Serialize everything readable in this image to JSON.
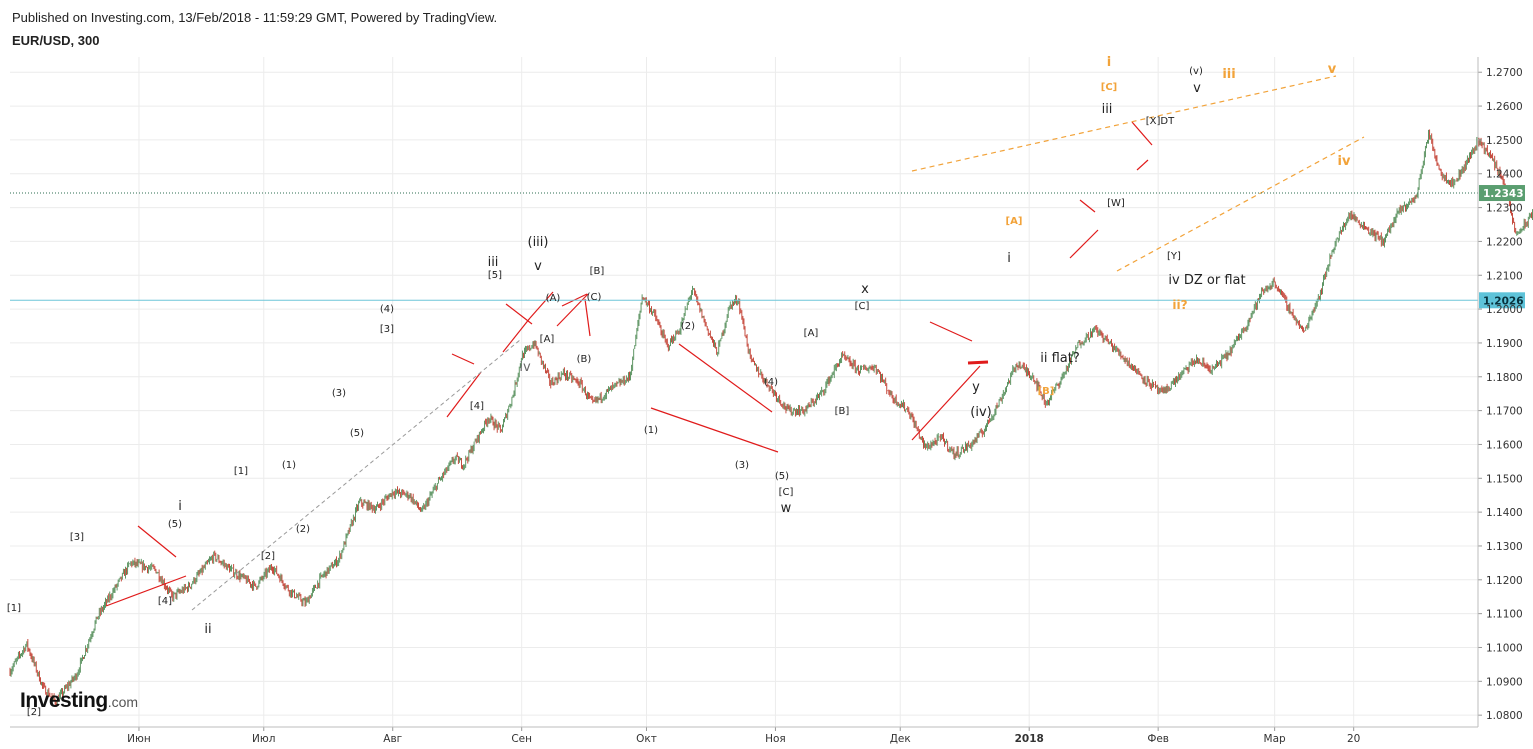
{
  "header": {
    "published": "Published on Investing.com, 13/Feb/2018 - 11:59:29 GMT, Powered by TradingView.",
    "symbol": "EUR/USD, 300"
  },
  "logo": {
    "brand": "Investing",
    "suffix": ".com"
  },
  "colors": {
    "up": "#4f8b55",
    "down": "#c0392b",
    "grid": "#ececec",
    "axis": "#bdbdbd",
    "trend_red": "#e01b1b",
    "orange": "#f2a33a",
    "dashed_grey": "#9a9a9a",
    "last_price_bg": "#5a9e70",
    "level_bg": "#5ec3d9",
    "level_line": "#6fc6d8",
    "price_dotted": "#2e6e51"
  },
  "chart_data": {
    "type": "candlestick",
    "x_ticks": [
      "Июн",
      "Июл",
      "Авг",
      "Сен",
      "Окт",
      "Ноя",
      "Дек",
      "2018",
      "Фев",
      "Мар",
      "20"
    ],
    "y_ticks": [
      "1.2700",
      "1.2600",
      "1.2500",
      "1.2400",
      "1.2300",
      "1.2200",
      "1.2100",
      "1.2000",
      "1.1900",
      "1.1800",
      "1.1700",
      "1.1600",
      "1.1500",
      "1.1400",
      "1.1300",
      "1.1200",
      "1.1100",
      "1.1000",
      "1.0900",
      "1.0800"
    ],
    "ylim": [
      1.0765,
      1.2745
    ],
    "last_price": {
      "value": 1.2343,
      "label": "1.2343"
    },
    "level": {
      "value": 1.2026,
      "label": "1.2026"
    },
    "path": [
      [
        "2017-05-01",
        1.093
      ],
      [
        "2017-05-05",
        1.101
      ],
      [
        "2017-05-09",
        1.088
      ],
      [
        "2017-05-12",
        1.084
      ],
      [
        "2017-05-17",
        1.092
      ],
      [
        "2017-05-22",
        1.109
      ],
      [
        "2017-05-26",
        1.117
      ],
      [
        "2017-05-30",
        1.125
      ],
      [
        "2017-06-05",
        1.123
      ],
      [
        "2017-06-09",
        1.115
      ],
      [
        "2017-06-13",
        1.118
      ],
      [
        "2017-06-19",
        1.127
      ],
      [
        "2017-06-23",
        1.123
      ],
      [
        "2017-06-29",
        1.118
      ],
      [
        "2017-07-03",
        1.124
      ],
      [
        "2017-07-07",
        1.117
      ],
      [
        "2017-07-11",
        1.113
      ],
      [
        "2017-07-15",
        1.121
      ],
      [
        "2017-07-19",
        1.126
      ],
      [
        "2017-07-24",
        1.143
      ],
      [
        "2017-07-28",
        1.141
      ],
      [
        "2017-08-01",
        1.146
      ],
      [
        "2017-08-05",
        1.145
      ],
      [
        "2017-08-08",
        1.14
      ],
      [
        "2017-08-12",
        1.149
      ],
      [
        "2017-08-16",
        1.156
      ],
      [
        "2017-08-18",
        1.154
      ],
      [
        "2017-08-21",
        1.161
      ],
      [
        "2017-08-24",
        1.168
      ],
      [
        "2017-08-27",
        1.164
      ],
      [
        "2017-08-30",
        1.175
      ],
      [
        "2017-09-01",
        1.186
      ],
      [
        "2017-09-04",
        1.19
      ],
      [
        "2017-09-08",
        1.178
      ],
      [
        "2017-09-11",
        1.181
      ],
      [
        "2017-09-15",
        1.178
      ],
      [
        "2017-09-18",
        1.172
      ],
      [
        "2017-09-22",
        1.176
      ],
      [
        "2017-09-27",
        1.18
      ],
      [
        "2017-09-30",
        1.204
      ],
      [
        "2017-10-03",
        1.198
      ],
      [
        "2017-10-06",
        1.189
      ],
      [
        "2017-10-09",
        1.194
      ],
      [
        "2017-10-12",
        1.206
      ],
      [
        "2017-10-15",
        1.196
      ],
      [
        "2017-10-18",
        1.187
      ],
      [
        "2017-10-21",
        1.201
      ],
      [
        "2017-10-23",
        1.203
      ],
      [
        "2017-10-26",
        1.185
      ],
      [
        "2017-10-30",
        1.178
      ],
      [
        "2017-11-04",
        1.17
      ],
      [
        "2017-11-08",
        1.17
      ],
      [
        "2017-11-12",
        1.175
      ],
      [
        "2017-11-17",
        1.186
      ],
      [
        "2017-11-21",
        1.182
      ],
      [
        "2017-11-25",
        1.183
      ],
      [
        "2017-11-29",
        1.174
      ],
      [
        "2017-12-03",
        1.17
      ],
      [
        "2017-12-07",
        1.159
      ],
      [
        "2017-12-11",
        1.162
      ],
      [
        "2017-12-14",
        1.157
      ],
      [
        "2017-12-18",
        1.16
      ],
      [
        "2017-12-21",
        1.164
      ],
      [
        "2017-12-25",
        1.173
      ],
      [
        "2017-12-29",
        1.184
      ],
      [
        "2018-01-02",
        1.18
      ],
      [
        "2018-01-05",
        1.172
      ],
      [
        "2018-01-09",
        1.18
      ],
      [
        "2018-01-13",
        1.19
      ],
      [
        "2018-01-17",
        1.194
      ],
      [
        "2018-01-21",
        1.189
      ],
      [
        "2018-01-25",
        1.184
      ],
      [
        "2018-01-29",
        1.179
      ],
      [
        "2018-02-02",
        1.175
      ],
      [
        "2018-02-06",
        1.18
      ],
      [
        "2018-02-10",
        1.185
      ],
      [
        "2018-02-14",
        1.182
      ],
      [
        "2018-02-18",
        1.187
      ],
      [
        "2018-02-22",
        1.195
      ],
      [
        "2018-02-26",
        1.205
      ],
      [
        "2018-03-01",
        1.208
      ],
      [
        "2018-03-05",
        1.199
      ],
      [
        "2018-03-08",
        1.193
      ],
      [
        "2018-03-12",
        1.205
      ],
      [
        "2018-03-15",
        1.218
      ],
      [
        "2018-03-19",
        1.228
      ],
      [
        "2018-03-23",
        1.224
      ],
      [
        "2018-03-27",
        1.22
      ],
      [
        "2018-03-31",
        1.229
      ],
      [
        "2018-04-04",
        1.233
      ],
      [
        "2018-04-07",
        1.252
      ],
      [
        "2018-04-10",
        1.24
      ],
      [
        "2018-04-13",
        1.237
      ],
      [
        "2018-04-16",
        1.243
      ],
      [
        "2018-04-19",
        1.25
      ],
      [
        "2018-04-22",
        1.245
      ],
      [
        "2018-04-25",
        1.238
      ],
      [
        "2018-04-28",
        1.222
      ],
      [
        "2018-05-01",
        1.226
      ],
      [
        "2018-05-04",
        1.2343
      ]
    ]
  },
  "annotations": [
    {
      "text": "[1]",
      "color": "black"
    },
    {
      "text": "[2]",
      "color": "black"
    },
    {
      "text": "[3]",
      "color": "black"
    },
    {
      "text": "[4]",
      "color": "black"
    },
    {
      "text": "(5)",
      "color": "black"
    },
    {
      "text": "i",
      "color": "black"
    },
    {
      "text": "ii",
      "color": "black"
    },
    {
      "text": "[1]",
      "color": "black"
    },
    {
      "text": "[2]",
      "color": "black"
    },
    {
      "text": "(1)",
      "color": "black"
    },
    {
      "text": "(2)",
      "color": "black"
    },
    {
      "text": "(3)",
      "color": "black"
    },
    {
      "text": "(4)",
      "color": "black"
    },
    {
      "text": "[3]",
      "color": "black"
    },
    {
      "text": "(5)",
      "color": "black"
    },
    {
      "text": "[4]",
      "color": "black"
    },
    {
      "text": "iii",
      "color": "black"
    },
    {
      "text": "[5]",
      "color": "black"
    },
    {
      "text": "iv",
      "color": "grey"
    },
    {
      "text": "(iii)",
      "color": "black"
    },
    {
      "text": "v",
      "color": "black"
    },
    {
      "text": "(A)",
      "color": "black"
    },
    {
      "text": "[A]",
      "color": "black"
    },
    {
      "text": "(C)",
      "color": "black"
    },
    {
      "text": "[B]",
      "color": "black"
    },
    {
      "text": "(B)",
      "color": "black"
    },
    {
      "text": "(1)",
      "color": "black"
    },
    {
      "text": "(2)",
      "color": "black"
    },
    {
      "text": "(3)",
      "color": "black"
    },
    {
      "text": "(4)",
      "color": "black"
    },
    {
      "text": "(5)",
      "color": "black"
    },
    {
      "text": "[C]",
      "color": "black"
    },
    {
      "text": "w",
      "color": "black"
    },
    {
      "text": "[A]",
      "color": "black"
    },
    {
      "text": "[B]",
      "color": "black"
    },
    {
      "text": "x",
      "color": "black"
    },
    {
      "text": "[C]",
      "color": "black"
    },
    {
      "text": "y",
      "color": "black"
    },
    {
      "text": "(iv)",
      "color": "black"
    },
    {
      "text": "i",
      "color": "black"
    },
    {
      "text": "ii flat?",
      "color": "black"
    },
    {
      "text": "[A]",
      "color": "orange"
    },
    {
      "text": "[B]",
      "color": "orange"
    },
    {
      "text": "i",
      "color": "orange"
    },
    {
      "text": "[C]",
      "color": "orange"
    },
    {
      "text": "iii",
      "color": "black"
    },
    {
      "text": "[W]",
      "color": "black"
    },
    {
      "text": "[X]DT",
      "color": "black"
    },
    {
      "text": "[Y]",
      "color": "black"
    },
    {
      "text": "(v)",
      "color": "black"
    },
    {
      "text": "v",
      "color": "black"
    },
    {
      "text": "iii",
      "color": "orange"
    },
    {
      "text": "v",
      "color": "orange"
    },
    {
      "text": "iv",
      "color": "orange"
    },
    {
      "text": "iv DZ or flat",
      "color": "black"
    },
    {
      "text": "ii?",
      "color": "orange"
    }
  ]
}
